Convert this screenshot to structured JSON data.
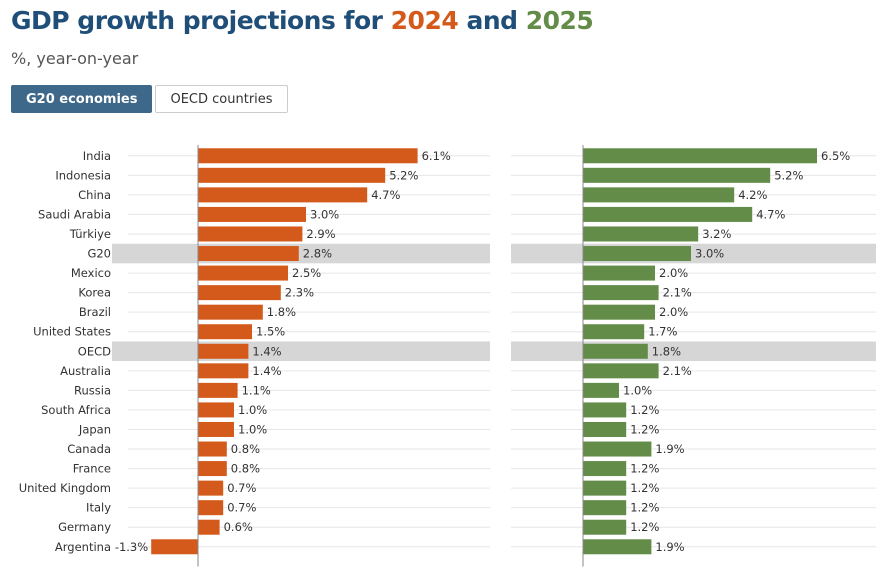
{
  "header": {
    "title_prefix": "GDP growth projections for ",
    "title_year1": "2024",
    "title_mid": " and ",
    "title_year2": "2025",
    "subtitle": "%, year-on-year"
  },
  "tabs": [
    {
      "label": "G20 economies",
      "active": true
    },
    {
      "label": "OECD countries",
      "active": false
    }
  ],
  "colors": {
    "series_2024": "#d45a1b",
    "series_2025": "#628c47",
    "title": "#1f4e79",
    "highlight_row": "#d6d6d6"
  },
  "chart_data": {
    "type": "bar",
    "orientation": "horizontal",
    "categories": [
      "India",
      "Indonesia",
      "China",
      "Saudi Arabia",
      "Türkiye",
      "G20",
      "Mexico",
      "Korea",
      "Brazil",
      "United States",
      "OECD",
      "Australia",
      "Russia",
      "South Africa",
      "Japan",
      "Canada",
      "France",
      "United Kingdom",
      "Italy",
      "Germany",
      "Argentina"
    ],
    "highlighted": [
      "G20",
      "OECD"
    ],
    "series": [
      {
        "name": "2024",
        "values": [
          6.1,
          5.2,
          4.7,
          3.0,
          2.9,
          2.8,
          2.5,
          2.3,
          1.8,
          1.5,
          1.4,
          1.4,
          1.1,
          1.0,
          1.0,
          0.8,
          0.8,
          0.7,
          0.7,
          0.6,
          -1.3
        ]
      },
      {
        "name": "2025",
        "values": [
          6.5,
          5.2,
          4.2,
          4.7,
          3.2,
          3.0,
          2.0,
          2.1,
          2.0,
          1.7,
          1.8,
          2.1,
          1.0,
          1.2,
          1.2,
          1.9,
          1.2,
          1.2,
          1.2,
          1.2,
          1.9
        ]
      }
    ],
    "value_suffix": "%",
    "grid": true
  }
}
